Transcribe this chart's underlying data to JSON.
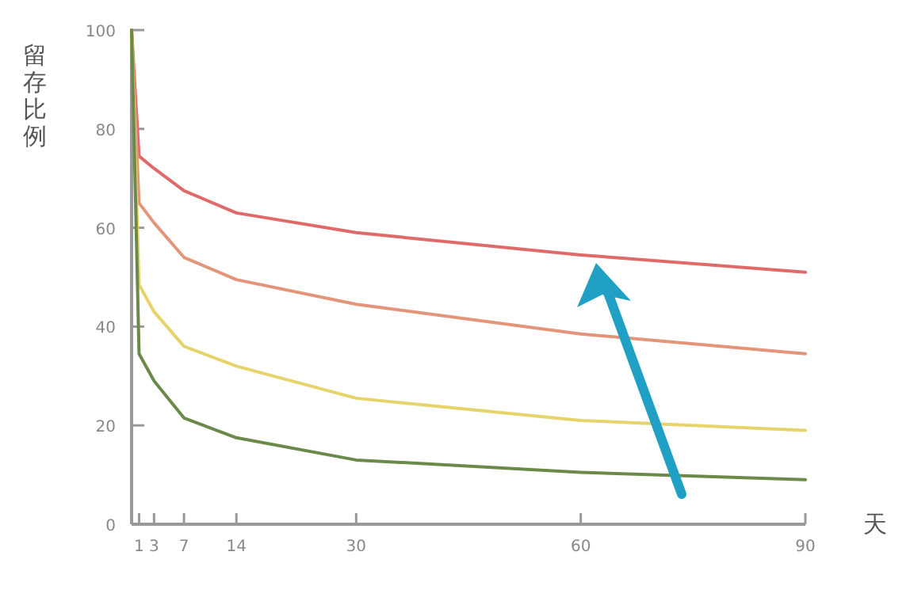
{
  "chart_data": {
    "type": "line",
    "xlabel": "天",
    "ylabel": "留存比例",
    "x": [
      0,
      1,
      3,
      7,
      14,
      30,
      60,
      90
    ],
    "series": [
      {
        "color": "#e06a6a",
        "values": [
          100,
          74.5,
          72,
          67.5,
          63,
          59,
          54.5,
          51
        ]
      },
      {
        "color": "#e3957a",
        "values": [
          100,
          65,
          61,
          54,
          49.5,
          44.5,
          38.5,
          34.5
        ]
      },
      {
        "color": "#e6d36a",
        "values": [
          100,
          48.5,
          43,
          36,
          32,
          25.5,
          21,
          19
        ]
      },
      {
        "color": "#6b8a4a",
        "values": [
          100,
          34.5,
          29,
          21.5,
          17.5,
          13,
          10.5,
          9
        ]
      }
    ],
    "xlim": [
      0,
      90
    ],
    "ylim": [
      0,
      100
    ],
    "xticks": [
      1,
      3,
      7,
      14,
      30,
      60,
      90
    ],
    "yticks": [
      0,
      20,
      40,
      60,
      80,
      100
    ],
    "grid": false,
    "marker": "none",
    "line_style": "solid"
  }
}
